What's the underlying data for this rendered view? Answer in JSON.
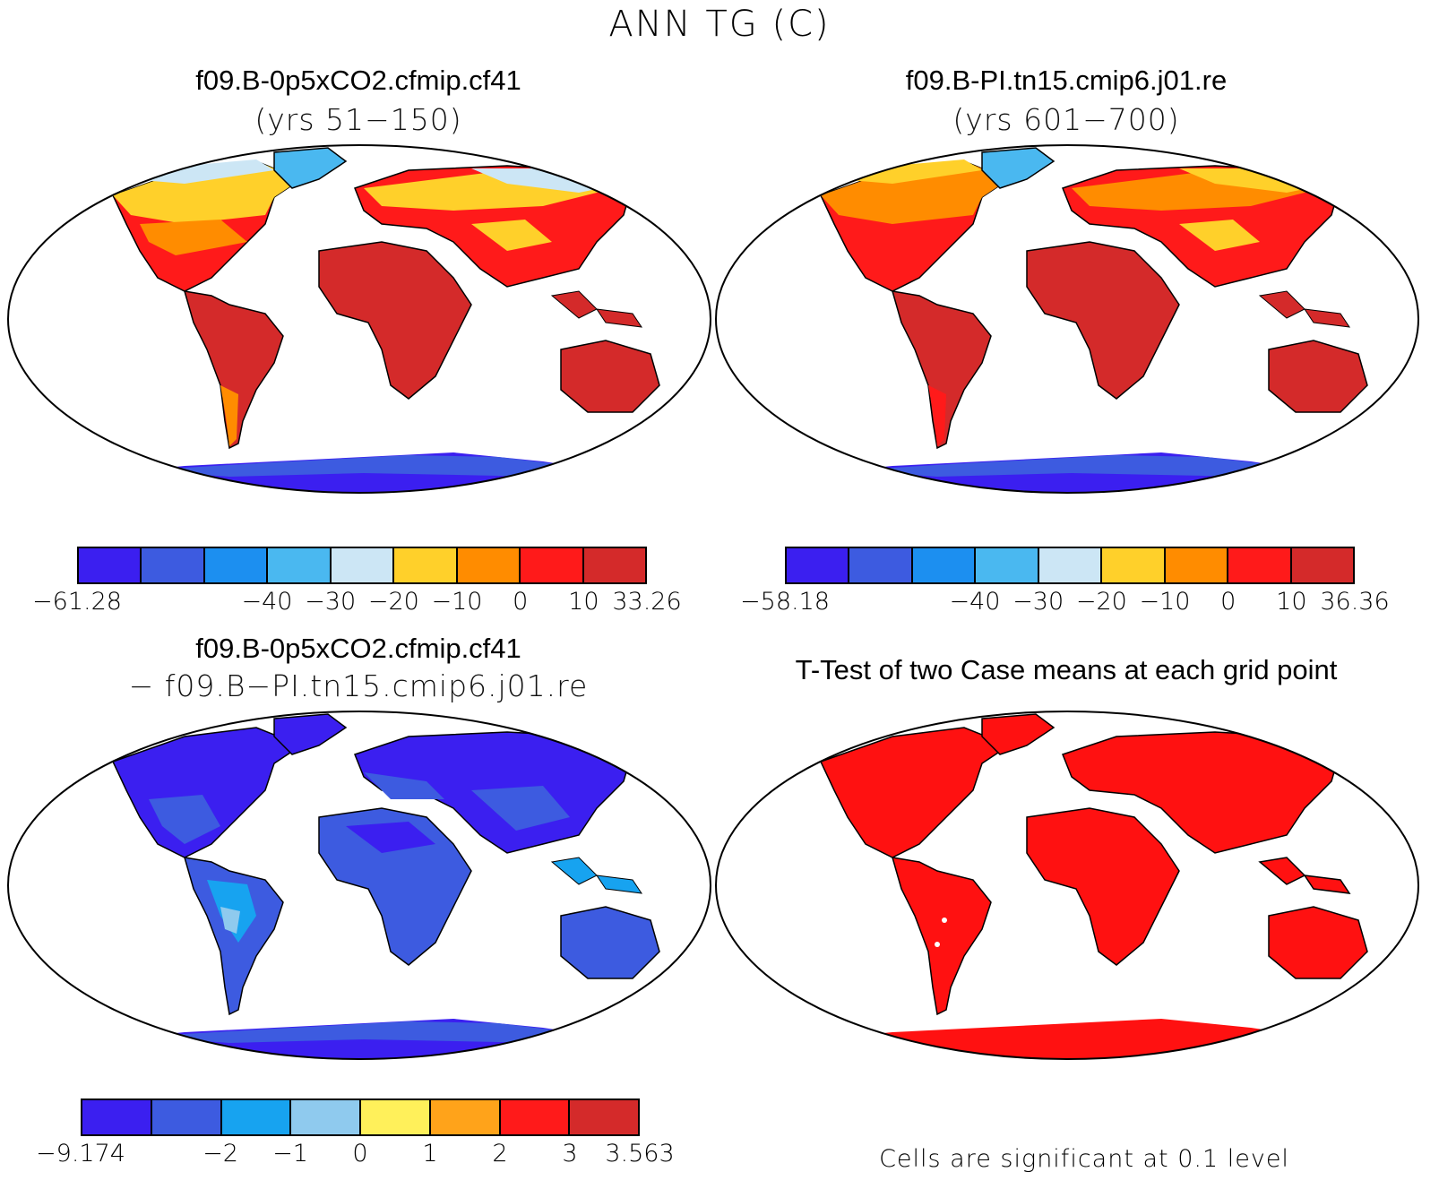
{
  "figure": {
    "title": "ANN TG (C)"
  },
  "panels": [
    {
      "title": "f09.B-0p5xCO2.cfmip.cf41",
      "subtitle": "(yrs 51−150)"
    },
    {
      "title": "f09.B-PI.tn15.cmip6.j01.re",
      "subtitle": "(yrs 601−700)"
    },
    {
      "title": "f09.B-0p5xCO2.cfmip.cf41",
      "subtitle": "− f09.B−PI.tn15.cmip6.j01.re"
    },
    {
      "title": "T-Test of two Case means at each grid point",
      "subtitle": ""
    }
  ],
  "colorbars": [
    {
      "colors": [
        "#3b1ff0",
        "#3d5be0",
        "#1c8ff0",
        "#4ab8f0",
        "#cce6f5",
        "#ffd02a",
        "#ff8c00",
        "#ff1a1a",
        "#d42a2a"
      ],
      "labels": [
        "−61.28",
        "−40",
        "−30",
        "−20",
        "−10",
        "0",
        "10",
        "33.26"
      ]
    },
    {
      "colors": [
        "#3b1ff0",
        "#3d5be0",
        "#1c8ff0",
        "#4ab8f0",
        "#cce6f5",
        "#ffd02a",
        "#ff8c00",
        "#ff1a1a",
        "#d42a2a"
      ],
      "labels": [
        "−58.18",
        "−40",
        "−30",
        "−20",
        "−10",
        "0",
        "10",
        "36.36"
      ]
    },
    {
      "colors": [
        "#3b1ff0",
        "#3d5be0",
        "#17a3f0",
        "#8fcaee",
        "#fff05a",
        "#ffa31a",
        "#ff1a1a",
        "#d42a2a"
      ],
      "labels": [
        "−9.174",
        "−2",
        "−1",
        "0",
        "1",
        "2",
        "3",
        "3.563"
      ]
    }
  ],
  "significance_note": "Cells are significant at 0.1 level",
  "colors": {
    "warm": "#d42a2a",
    "cold": "#3b1ff0",
    "significant": "#ff1111"
  }
}
